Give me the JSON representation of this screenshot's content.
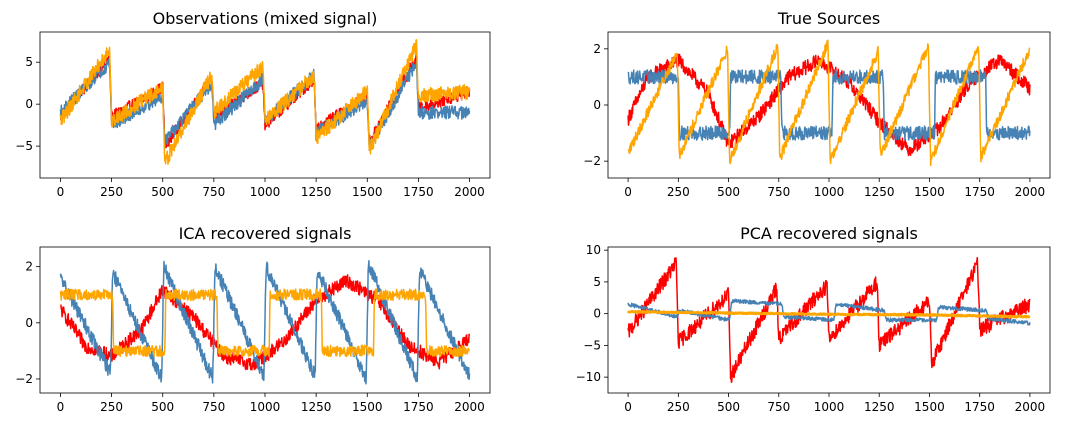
{
  "colors": {
    "red": "#ff0000",
    "blue": "#4682b4",
    "orange": "#ffa500"
  },
  "chart_data": [
    {
      "type": "line",
      "title": "Observations (mixed signal)",
      "xlim": [
        -100,
        2100
      ],
      "ylim": [
        -8.8,
        8.6
      ],
      "xticks": [
        0,
        250,
        500,
        750,
        1000,
        1250,
        1500,
        1750,
        2000
      ],
      "yticks": [
        -5,
        0,
        5
      ],
      "grid": false,
      "series": [
        {
          "color": "red",
          "noise": 0.7,
          "points": [
            [
              0,
              -1.5
            ],
            [
              240,
              5.5
            ],
            [
              250,
              -1.5
            ],
            [
              500,
              2.0
            ],
            [
              510,
              -5.0
            ],
            [
              740,
              3.0
            ],
            [
              750,
              -1.5
            ],
            [
              990,
              2.5
            ],
            [
              1000,
              -2.5
            ],
            [
              1240,
              3.0
            ],
            [
              1250,
              -3.0
            ],
            [
              1500,
              1.0
            ],
            [
              1510,
              -4.5
            ],
            [
              1740,
              5.5
            ],
            [
              1750,
              -0.5
            ],
            [
              2000,
              1.5
            ]
          ]
        },
        {
          "color": "blue",
          "noise": 0.8,
          "points": [
            [
              0,
              -1.0
            ],
            [
              240,
              5.0
            ],
            [
              250,
              -2.5
            ],
            [
              500,
              1.0
            ],
            [
              510,
              -4.5
            ],
            [
              740,
              2.5
            ],
            [
              750,
              -2.5
            ],
            [
              990,
              3.0
            ],
            [
              1000,
              -2.0
            ],
            [
              1240,
              3.5
            ],
            [
              1250,
              -3.5
            ],
            [
              1500,
              0.5
            ],
            [
              1510,
              -5.0
            ],
            [
              1740,
              5.0
            ],
            [
              1750,
              -1.0
            ],
            [
              2000,
              -1.0
            ]
          ]
        },
        {
          "color": "orange",
          "noise": 0.9,
          "points": [
            [
              0,
              -2.0
            ],
            [
              240,
              6.5
            ],
            [
              250,
              -2.0
            ],
            [
              500,
              2.0
            ],
            [
              510,
              -7.0
            ],
            [
              740,
              3.5
            ],
            [
              750,
              -1.0
            ],
            [
              990,
              4.5
            ],
            [
              1000,
              -2.0
            ],
            [
              1240,
              3.5
            ],
            [
              1250,
              -4.0
            ],
            [
              1500,
              1.5
            ],
            [
              1510,
              -5.5
            ],
            [
              1740,
              7.0
            ],
            [
              1750,
              1.0
            ],
            [
              2000,
              1.5
            ]
          ]
        }
      ]
    },
    {
      "type": "line",
      "title": "True Sources",
      "xlim": [
        -100,
        2100
      ],
      "ylim": [
        -2.6,
        2.6
      ],
      "xticks": [
        0,
        250,
        500,
        750,
        1000,
        1250,
        1500,
        1750,
        2000
      ],
      "yticks": [
        -2,
        0,
        2
      ],
      "grid": false,
      "series": [
        {
          "color": "red",
          "noise": 0.25,
          "points": [
            [
              0,
              -0.5
            ],
            [
              100,
              1.0
            ],
            [
              250,
              1.6
            ],
            [
              400,
              0.4
            ],
            [
              500,
              -1.4
            ],
            [
              650,
              -0.4
            ],
            [
              800,
              1.0
            ],
            [
              950,
              1.6
            ],
            [
              1100,
              0.8
            ],
            [
              1250,
              -0.6
            ],
            [
              1400,
              -1.6
            ],
            [
              1550,
              -0.8
            ],
            [
              1700,
              0.8
            ],
            [
              1850,
              1.6
            ],
            [
              2000,
              0.6
            ]
          ]
        },
        {
          "color": "blue",
          "noise": 0.25,
          "points": [
            [
              0,
              1.0
            ],
            [
              250,
              1.0
            ],
            [
              255,
              -1.0
            ],
            [
              505,
              -1.0
            ],
            [
              510,
              1.0
            ],
            [
              760,
              1.0
            ],
            [
              765,
              -1.0
            ],
            [
              1015,
              -1.0
            ],
            [
              1020,
              1.0
            ],
            [
              1270,
              1.0
            ],
            [
              1275,
              -1.0
            ],
            [
              1525,
              -1.0
            ],
            [
              1530,
              1.0
            ],
            [
              1780,
              1.0
            ],
            [
              1785,
              -1.0
            ],
            [
              2000,
              -1.0
            ]
          ]
        },
        {
          "color": "orange",
          "noise": 0.2,
          "points": [
            [
              0,
              -1.7
            ],
            [
              245,
              1.9
            ],
            [
              255,
              -1.8
            ],
            [
              495,
              2.0
            ],
            [
              505,
              -2.0
            ],
            [
              745,
              2.1
            ],
            [
              755,
              -1.9
            ],
            [
              995,
              2.2
            ],
            [
              1005,
              -2.0
            ],
            [
              1245,
              1.9
            ],
            [
              1255,
              -1.8
            ],
            [
              1495,
              2.1
            ],
            [
              1505,
              -2.0
            ],
            [
              1745,
              2.1
            ],
            [
              1755,
              -1.9
            ],
            [
              2000,
              2.0
            ]
          ]
        }
      ]
    },
    {
      "type": "line",
      "title": "ICA recovered signals",
      "xlim": [
        -100,
        2100
      ],
      "ylim": [
        -2.5,
        2.7
      ],
      "xticks": [
        0,
        250,
        500,
        750,
        1000,
        1250,
        1500,
        1750,
        2000
      ],
      "yticks": [
        -2,
        0,
        2
      ],
      "grid": false,
      "series": [
        {
          "color": "red",
          "noise": 0.25,
          "points": [
            [
              0,
              0.5
            ],
            [
              120,
              -0.8
            ],
            [
              250,
              -1.2
            ],
            [
              400,
              -0.2
            ],
            [
              500,
              1.2
            ],
            [
              650,
              0.2
            ],
            [
              800,
              -1.2
            ],
            [
              950,
              -1.5
            ],
            [
              1100,
              -0.6
            ],
            [
              1250,
              0.8
            ],
            [
              1400,
              1.5
            ],
            [
              1550,
              0.8
            ],
            [
              1700,
              -0.8
            ],
            [
              1850,
              -1.4
            ],
            [
              2000,
              -0.6
            ]
          ]
        },
        {
          "color": "blue",
          "noise": 0.25,
          "points": [
            [
              0,
              1.6
            ],
            [
              245,
              -1.8
            ],
            [
              255,
              1.8
            ],
            [
              495,
              -2.0
            ],
            [
              505,
              2.0
            ],
            [
              745,
              -2.0
            ],
            [
              755,
              2.0
            ],
            [
              995,
              -1.9
            ],
            [
              1005,
              2.0
            ],
            [
              1245,
              -1.9
            ],
            [
              1255,
              1.9
            ],
            [
              1495,
              -2.0
            ],
            [
              1505,
              2.1
            ],
            [
              1745,
              -2.0
            ],
            [
              1755,
              1.9
            ],
            [
              2000,
              -1.9
            ]
          ]
        },
        {
          "color": "orange",
          "noise": 0.2,
          "points": [
            [
              0,
              1.0
            ],
            [
              255,
              1.0
            ],
            [
              260,
              -1.0
            ],
            [
              510,
              -1.0
            ],
            [
              515,
              1.0
            ],
            [
              765,
              1.0
            ],
            [
              770,
              -1.0
            ],
            [
              1020,
              -1.0
            ],
            [
              1025,
              1.0
            ],
            [
              1275,
              1.0
            ],
            [
              1280,
              -1.0
            ],
            [
              1530,
              -1.0
            ],
            [
              1535,
              1.0
            ],
            [
              1785,
              1.0
            ],
            [
              1790,
              -1.0
            ],
            [
              2000,
              -1.0
            ]
          ]
        }
      ]
    },
    {
      "type": "line",
      "title": "PCA recovered signals",
      "xlim": [
        -100,
        2100
      ],
      "ylim": [
        -12.5,
        10.5
      ],
      "xticks": [
        0,
        250,
        500,
        750,
        1000,
        1250,
        1500,
        1750,
        2000
      ],
      "yticks": [
        -10,
        -5,
        0,
        5,
        10
      ],
      "grid": false,
      "series": [
        {
          "color": "red",
          "noise": 1.2,
          "points": [
            [
              0,
              -3.0
            ],
            [
              240,
              8.0
            ],
            [
              250,
              -4.5
            ],
            [
              500,
              3.0
            ],
            [
              510,
              -10.0
            ],
            [
              740,
              4.0
            ],
            [
              750,
              -4.0
            ],
            [
              990,
              4.5
            ],
            [
              1000,
              -4.0
            ],
            [
              1240,
              5.0
            ],
            [
              1250,
              -5.0
            ],
            [
              1500,
              2.0
            ],
            [
              1510,
              -8.0
            ],
            [
              1740,
              8.0
            ],
            [
              1750,
              -2.5
            ],
            [
              2000,
              1.5
            ]
          ]
        },
        {
          "color": "blue",
          "noise": 0.3,
          "points": [
            [
              0,
              1.5
            ],
            [
              245,
              -0.5
            ],
            [
              255,
              0.5
            ],
            [
              505,
              -1.0
            ],
            [
              515,
              2.0
            ],
            [
              765,
              1.5
            ],
            [
              775,
              -0.5
            ],
            [
              1025,
              -1.0
            ],
            [
              1035,
              1.5
            ],
            [
              1275,
              0.5
            ],
            [
              1285,
              -1.0
            ],
            [
              1535,
              -1.0
            ],
            [
              1545,
              1.0
            ],
            [
              1785,
              0.5
            ],
            [
              1795,
              -0.8
            ],
            [
              2000,
              -1.5
            ]
          ]
        },
        {
          "color": "orange",
          "noise": 0.1,
          "points": [
            [
              0,
              0.3
            ],
            [
              500,
              0.1
            ],
            [
              1000,
              -0.1
            ],
            [
              1500,
              -0.2
            ],
            [
              2000,
              -0.5
            ]
          ]
        }
      ]
    }
  ]
}
